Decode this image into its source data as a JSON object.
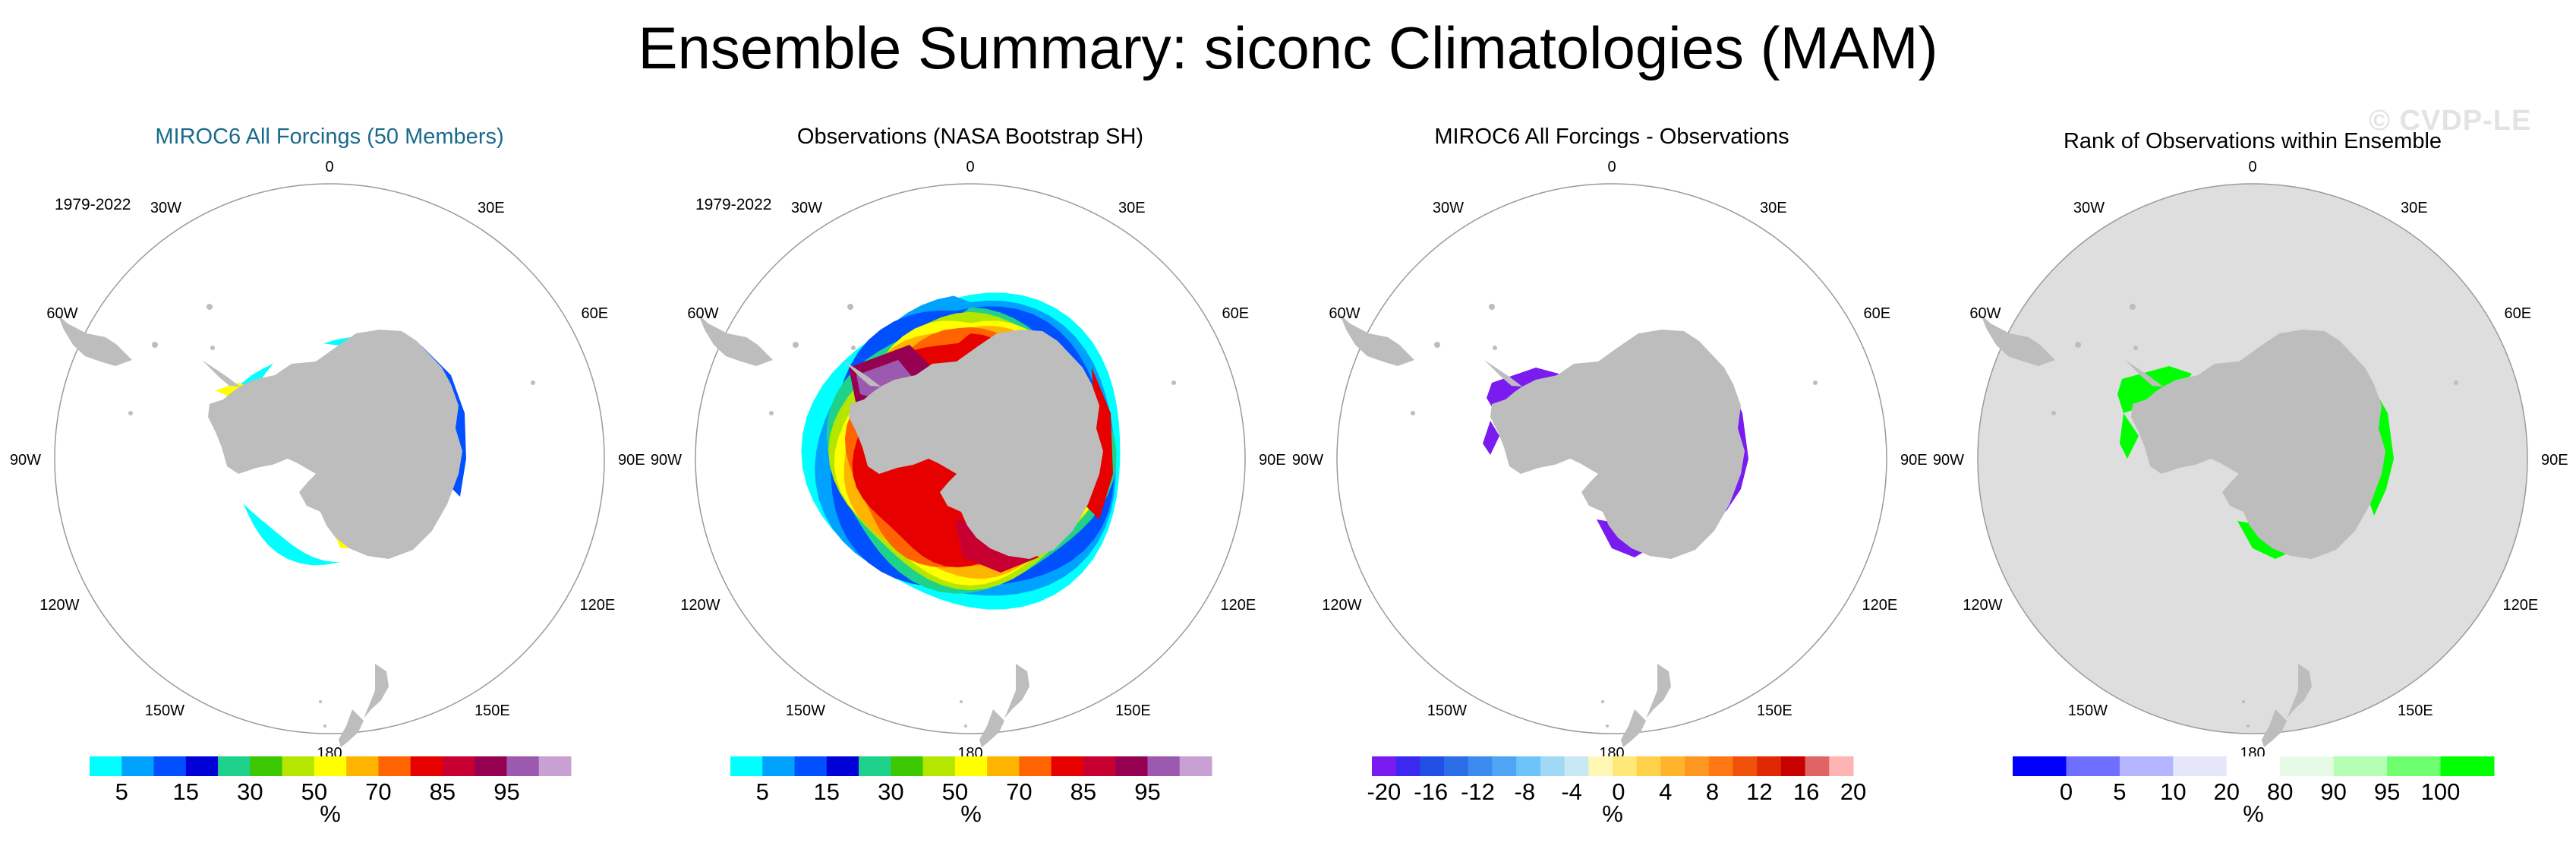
{
  "figure": {
    "title": "Ensemble Summary: siconc Climatologies (MAM)",
    "watermark": "© CVDP-LE"
  },
  "colors": {
    "land": "#bdbdbd",
    "ocean_blank": "#ffffff",
    "rank_background": "#dedede",
    "title_blue": "#1a6a8c"
  },
  "lon_labels": [
    "0",
    "30E",
    "60E",
    "90E",
    "120E",
    "150E",
    "180",
    "150W",
    "120W",
    "90W",
    "60W",
    "30W"
  ],
  "panels": [
    {
      "title": "MIROC6 All Forcings (50 Members)",
      "title_color": "#1a6a8c",
      "period": "1979-2022",
      "colorbar": {
        "colors": [
          "#00ffff",
          "#00a2ff",
          "#0050ff",
          "#0000d8",
          "#1ed28c",
          "#3cc800",
          "#b4e600",
          "#ffff00",
          "#ffb400",
          "#ff6400",
          "#e60000",
          "#c80032",
          "#960050",
          "#9b5aaf",
          "#c8a0d2"
        ],
        "labels": [
          "5",
          "15",
          "30",
          "50",
          "70",
          "85",
          "95"
        ],
        "units": "%"
      }
    },
    {
      "title": "Observations (NASA Bootstrap SH)",
      "title_color": "#000000",
      "period": "1979-2022",
      "colorbar": {
        "colors": [
          "#00ffff",
          "#00a2ff",
          "#0050ff",
          "#0000d8",
          "#1ed28c",
          "#3cc800",
          "#b4e600",
          "#ffff00",
          "#ffb400",
          "#ff6400",
          "#e60000",
          "#c80032",
          "#960050",
          "#9b5aaf",
          "#c8a0d2"
        ],
        "labels": [
          "5",
          "15",
          "30",
          "50",
          "70",
          "85",
          "95"
        ],
        "units": "%"
      }
    },
    {
      "title": "MIROC6 All Forcings - Observations",
      "title_color": "#000000",
      "period": "",
      "colorbar": {
        "colors": [
          "#7a1cf0",
          "#3c28f0",
          "#2050e6",
          "#2c6ee8",
          "#3c8cf0",
          "#50a6f4",
          "#6cc4f8",
          "#a0d8f6",
          "#c8e8f6",
          "#fff8b4",
          "#ffe878",
          "#ffd04a",
          "#ffb42c",
          "#ff9620",
          "#ff7814",
          "#f0500a",
          "#e02804",
          "#c80000",
          "#e06464",
          "#ffb4b4"
        ],
        "labels": [
          "-20",
          "-16",
          "-12",
          "-8",
          "-4",
          "0",
          "4",
          "8",
          "12",
          "16",
          "20"
        ],
        "units": "%"
      }
    },
    {
      "title": "Rank of Observations within Ensemble",
      "title_color": "#000000",
      "period": "",
      "colorbar": {
        "colors": [
          "#0000ff",
          "#6e6eff",
          "#b4b4ff",
          "#e6e6fa",
          "#ffffff",
          "#e6fae6",
          "#b4ffb4",
          "#6eff6e",
          "#00ff00"
        ],
        "labels": [
          "0",
          "5",
          "10",
          "20",
          "80",
          "90",
          "95",
          "100"
        ],
        "units": "%"
      }
    }
  ]
}
